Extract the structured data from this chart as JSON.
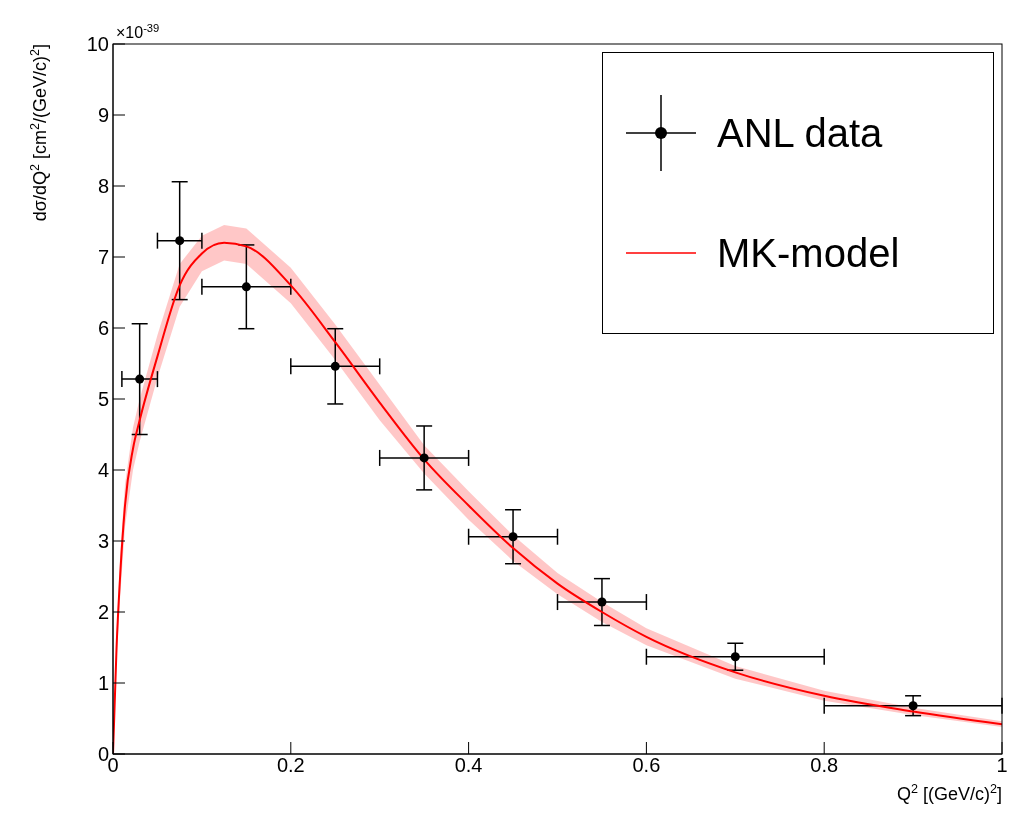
{
  "chart_data": {
    "type": "scatter",
    "xlabel": "Q$^{2}$ [(GeV/c)$^{2}$]",
    "ylabel": "dσ/dQ$^{2}$ [cm$^{2}$/(GeV/c)$^{2}$]",
    "annotations": [
      "×10$^{-39}$"
    ],
    "xlim": [
      0,
      1
    ],
    "xticks": [
      0,
      0.2,
      0.4,
      0.6,
      0.8,
      1
    ],
    "ylim": [
      0,
      10
    ],
    "yticks": [
      0,
      1,
      2,
      3,
      4,
      5,
      6,
      7,
      8,
      9,
      10
    ],
    "legend": "top right",
    "series": [
      {
        "name": "ANL data",
        "marker": "circle",
        "color": "#000000",
        "x": [
          0.03,
          0.075,
          0.15,
          0.25,
          0.35,
          0.45,
          0.55,
          0.7,
          0.9
        ],
        "values": [
          5.28,
          7.23,
          6.58,
          5.46,
          4.17,
          3.06,
          2.14,
          1.37,
          0.68
        ],
        "errors": [
          0.78,
          0.83,
          0.59,
          0.53,
          0.45,
          0.38,
          0.33,
          0.19,
          0.14
        ],
        "xerrors": [
          0.02,
          0.025,
          0.05,
          0.05,
          0.05,
          0.05,
          0.05,
          0.1,
          0.1
        ]
      },
      {
        "name": "MK-model",
        "type": "line",
        "color": "#ff0000",
        "line_style": "solid",
        "x": [
          0,
          0.004,
          0.008,
          0.0135,
          0.0225,
          0.03,
          0.05,
          0.075,
          0.1,
          0.125,
          0.15,
          0.2,
          0.25,
          0.3,
          0.35,
          0.4,
          0.45,
          0.5,
          0.55,
          0.6,
          0.7,
          0.8,
          0.9,
          1.0
        ],
        "values": [
          0,
          1.5,
          2.5,
          3.5,
          4.3,
          4.7,
          5.6,
          6.6,
          7.05,
          7.2,
          7.15,
          6.6,
          5.8,
          4.95,
          4.15,
          3.5,
          2.9,
          2.4,
          2.0,
          1.65,
          1.15,
          0.82,
          0.6,
          0.42
        ],
        "lower": [
          0,
          1.3,
          2.2,
          3.2,
          4.0,
          4.4,
          5.3,
          6.3,
          6.8,
          6.95,
          6.9,
          6.35,
          5.55,
          4.7,
          3.95,
          3.3,
          2.72,
          2.25,
          1.86,
          1.53,
          1.06,
          0.75,
          0.55,
          0.38
        ],
        "upper": [
          0,
          1.7,
          2.8,
          3.8,
          4.6,
          5.0,
          5.9,
          6.9,
          7.3,
          7.45,
          7.4,
          6.85,
          6.05,
          5.2,
          4.35,
          3.7,
          3.08,
          2.55,
          2.14,
          1.77,
          1.24,
          0.89,
          0.65,
          0.46
        ]
      }
    ]
  }
}
